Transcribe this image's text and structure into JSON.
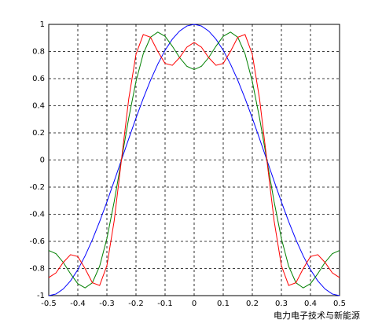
{
  "chart_data": {
    "type": "line",
    "x": [
      -0.5,
      -0.475,
      -0.45,
      -0.425,
      -0.4,
      -0.375,
      -0.35,
      -0.325,
      -0.3,
      -0.275,
      -0.25,
      -0.225,
      -0.2,
      -0.175,
      -0.15,
      -0.125,
      -0.1,
      -0.075,
      -0.05,
      -0.025,
      0,
      0.025,
      0.05,
      0.075,
      0.1,
      0.125,
      0.15,
      0.175,
      0.2,
      0.225,
      0.25,
      0.275,
      0.3,
      0.325,
      0.35,
      0.375,
      0.4,
      0.425,
      0.45,
      0.475,
      0.5
    ],
    "series": [
      {
        "color": "#0000ff",
        "values": [
          -1,
          -0.988,
          -0.951,
          -0.891,
          -0.809,
          -0.707,
          -0.588,
          -0.454,
          -0.309,
          -0.156,
          0,
          0.156,
          0.309,
          0.454,
          0.588,
          0.707,
          0.809,
          0.891,
          0.951,
          0.988,
          1,
          0.988,
          0.951,
          0.891,
          0.809,
          0.707,
          0.588,
          0.454,
          0.309,
          0.156,
          0,
          -0.156,
          -0.309,
          -0.454,
          -0.588,
          -0.707,
          -0.809,
          -0.891,
          -0.951,
          -0.988,
          -1
        ]
      },
      {
        "color": "#008000",
        "values": [
          -0.667,
          -0.691,
          -0.755,
          -0.839,
          -0.912,
          -0.943,
          -0.905,
          -0.783,
          -0.579,
          -0.308,
          0,
          0.308,
          0.579,
          0.783,
          0.905,
          0.943,
          0.912,
          0.839,
          0.755,
          0.691,
          0.667,
          0.691,
          0.755,
          0.839,
          0.912,
          0.943,
          0.905,
          0.783,
          0.579,
          0.308,
          0,
          -0.308,
          -0.579,
          -0.783,
          -0.905,
          -0.943,
          -0.912,
          -0.839,
          -0.755,
          -0.691,
          -0.667
        ]
      },
      {
        "color": "#ff0000",
        "values": [
          -0.867,
          -0.832,
          -0.755,
          -0.698,
          -0.712,
          -0.801,
          -0.905,
          -0.925,
          -0.779,
          -0.449,
          0,
          0.449,
          0.779,
          0.925,
          0.905,
          0.801,
          0.712,
          0.698,
          0.755,
          0.832,
          0.867,
          0.832,
          0.755,
          0.698,
          0.712,
          0.801,
          0.905,
          0.925,
          0.779,
          0.449,
          0,
          -0.449,
          -0.779,
          -0.925,
          -0.905,
          -0.801,
          -0.712,
          -0.698,
          -0.755,
          -0.832,
          -0.867
        ]
      }
    ],
    "xlim": [
      -0.5,
      0.5
    ],
    "xticks": [
      -0.5,
      -0.4,
      -0.3,
      -0.2,
      -0.1,
      0,
      0.1,
      0.2,
      0.3,
      0.4,
      0.5
    ],
    "ylim": [
      -1,
      1
    ],
    "yticks": [
      -1,
      -0.8,
      -0.6,
      -0.4,
      -0.2,
      0,
      0.2,
      0.4,
      0.6,
      0.8,
      1
    ],
    "grid": true,
    "watermark": "电力电子技术与新能源"
  }
}
